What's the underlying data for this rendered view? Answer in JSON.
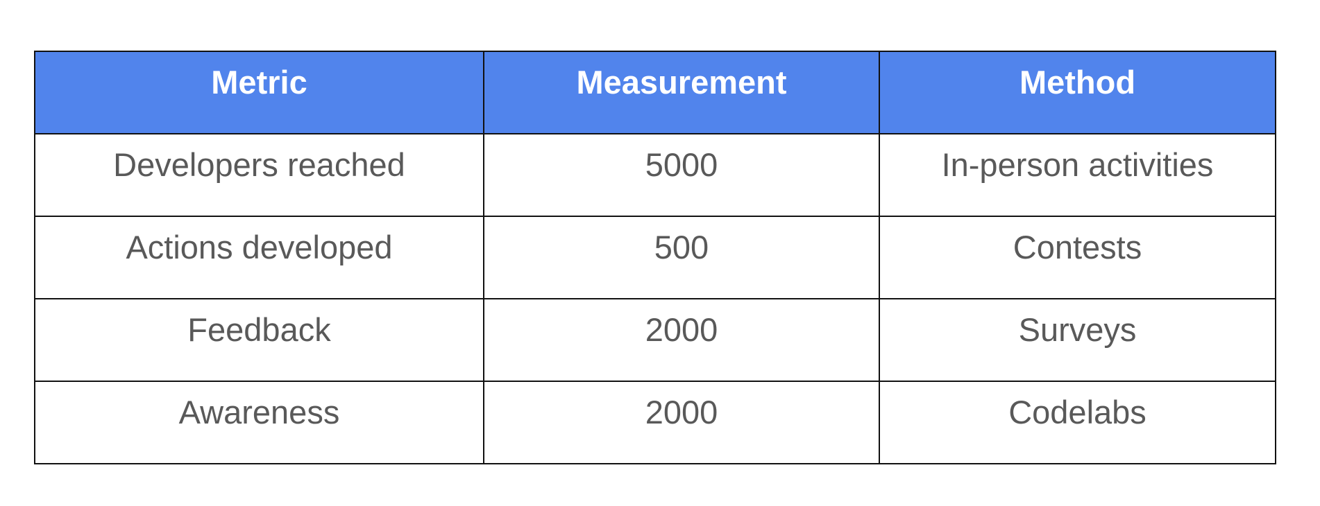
{
  "table": {
    "headers": [
      "Metric",
      "Measurement",
      "Method"
    ],
    "rows": [
      [
        "Developers reached",
        "5000",
        "In-person activities"
      ],
      [
        "Actions developed",
        "500",
        "Contests"
      ],
      [
        "Feedback",
        "2000",
        "Surveys"
      ],
      [
        "Awareness",
        "2000",
        "Codelabs"
      ]
    ]
  },
  "colors": {
    "header_background": "#5184ec",
    "header_text": "#ffffff",
    "cell_text": "#595959",
    "border": "#111111"
  }
}
